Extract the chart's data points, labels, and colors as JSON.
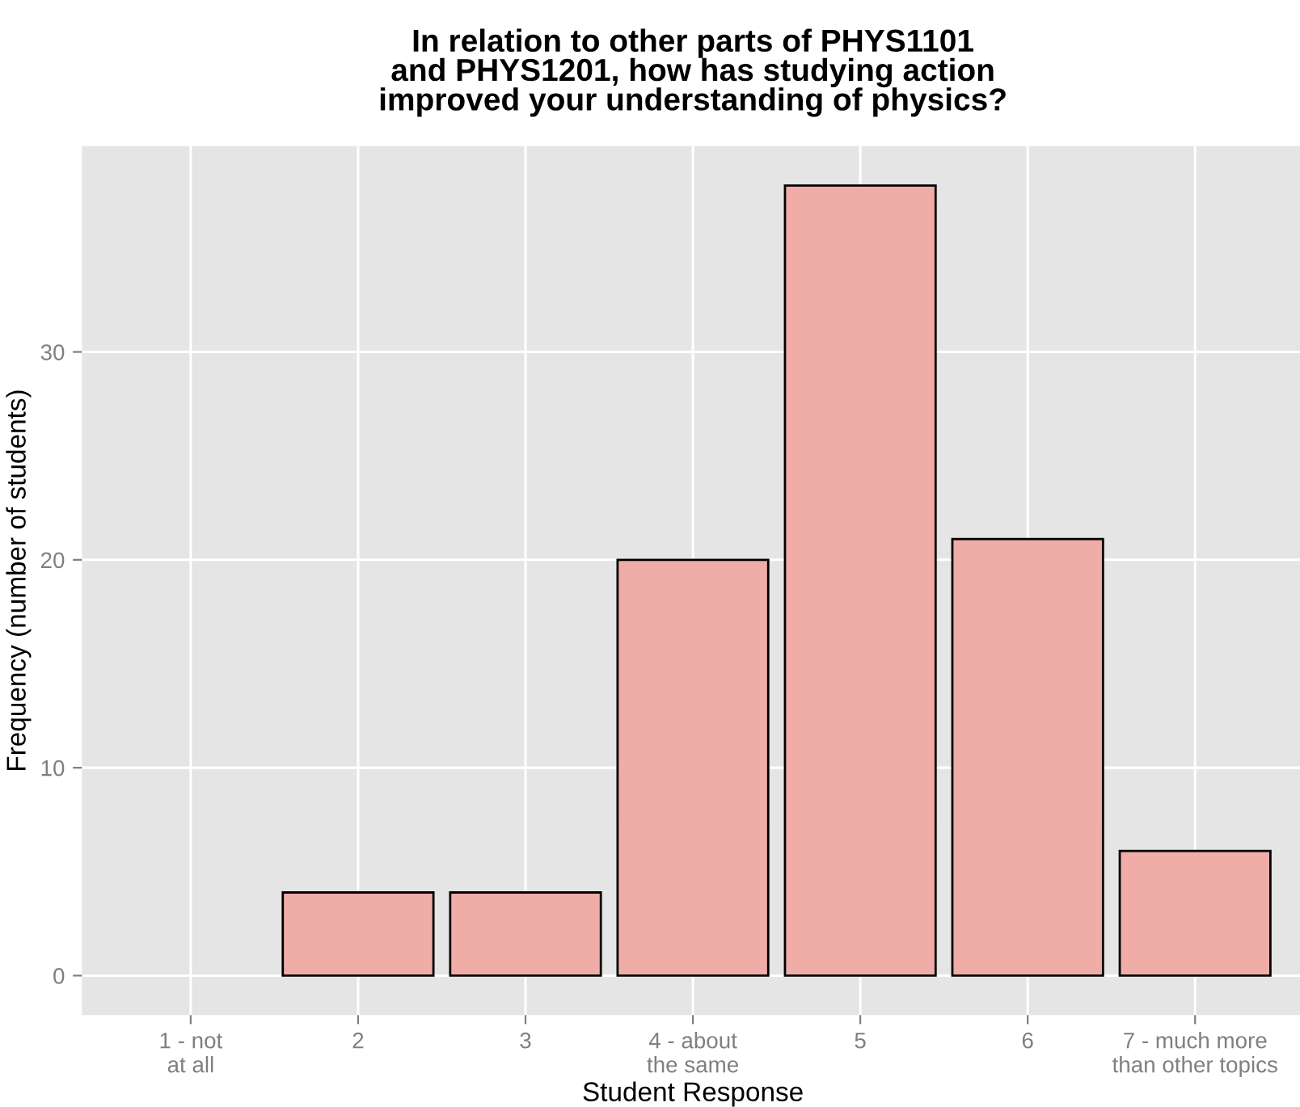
{
  "chart_data": {
    "type": "bar",
    "title": "In relation to other parts of PHYS1101\nand PHYS1201, how has studying action\nimproved your understanding of physics?",
    "xlabel": "Student Response",
    "ylabel": "Frequency (number of students)",
    "categories": [
      "1 - not\nat all",
      "2",
      "3",
      "4 - about\nthe same",
      "5",
      "6",
      "7 - much more\nthan other topics"
    ],
    "values": [
      0,
      4,
      4,
      20,
      38,
      21,
      6
    ],
    "color": "#f0aca7",
    "ylim": [
      -1.9,
      39.9
    ],
    "yticks": [
      0,
      10,
      20,
      30
    ],
    "grid": true
  }
}
